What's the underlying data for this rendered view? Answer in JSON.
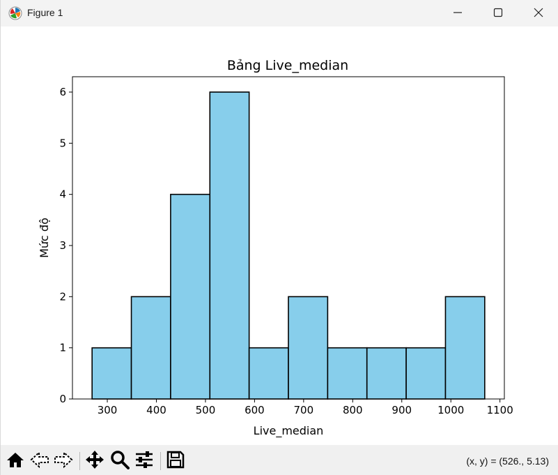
{
  "window": {
    "title": "Figure 1"
  },
  "status": {
    "coords": "(x, y) = (526., 5.13)"
  },
  "toolbar": {
    "buttons": [
      "home-icon",
      "back-icon",
      "forward-icon",
      "pan-icon",
      "zoom-icon",
      "configure-icon",
      "save-icon"
    ]
  },
  "colors": {
    "bar_fill": "#87ceeb",
    "bar_edge": "#000000"
  },
  "chart_data": {
    "type": "bar",
    "subtype": "histogram",
    "title": "Bảng Live_median",
    "xlabel": "Live_median",
    "ylabel": "Mức độ",
    "bin_edges": [
      269,
      349,
      429,
      509,
      589,
      669,
      749,
      829,
      909,
      989,
      1069
    ],
    "values": [
      1,
      2,
      4,
      6,
      1,
      2,
      1,
      1,
      1,
      2
    ],
    "xlim": [
      229,
      1109
    ],
    "ylim": [
      0,
      6.3
    ],
    "xticks": [
      300,
      400,
      500,
      600,
      700,
      800,
      900,
      1000,
      1100
    ],
    "yticks": [
      0,
      1,
      2,
      3,
      4,
      5,
      6
    ],
    "grid": false,
    "legend": "none"
  }
}
